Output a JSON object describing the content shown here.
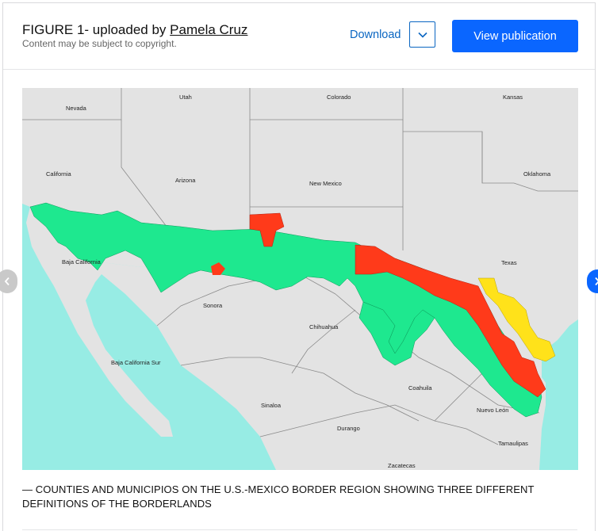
{
  "header": {
    "figure_label": "FIGURE 1- uploaded by ",
    "uploader": "Pamela Cruz",
    "copyright": "Content may be subject to copyright.",
    "download_label": "Download",
    "view_publication_label": "View publication"
  },
  "map": {
    "labels": {
      "nevada": "Nevada",
      "utah": "Utah",
      "colorado": "Colorado",
      "kansas": "Kansas",
      "california": "California",
      "arizona": "Arizona",
      "new_mexico": "New Mexico",
      "oklahoma": "Oklahoma",
      "baja_california": "Baja California",
      "texas": "Texas",
      "sonora": "Sonora",
      "chihuahua": "Chihuahua",
      "baja_california_sur": "Baja California Sur",
      "coahuila": "Coahuila",
      "sinaloa": "Sinaloa",
      "nuevo_leon": "Nuevo León",
      "durango": "Durango",
      "tamaulipas": "Tamaulipas",
      "zacatecas": "Zacatecas"
    },
    "colors": {
      "land": "#e3e3e3",
      "water": "#97ece4",
      "definition_green": "#1ee88f",
      "definition_red": "#ff3a1a",
      "definition_yellow": "#ffe21a",
      "borders": "#8a8a8a"
    }
  },
  "caption": "— COUNTIES AND MUNICIPIOS ON THE U.S.-MEXICO BORDER REGION SHOWING THREE DIFFERENT DEFINITIONS OF THE BORDERLANDS",
  "icons": {
    "dropdown": "chevron-down-icon",
    "prev": "chevron-left-icon",
    "next": "chevron-right-icon"
  }
}
